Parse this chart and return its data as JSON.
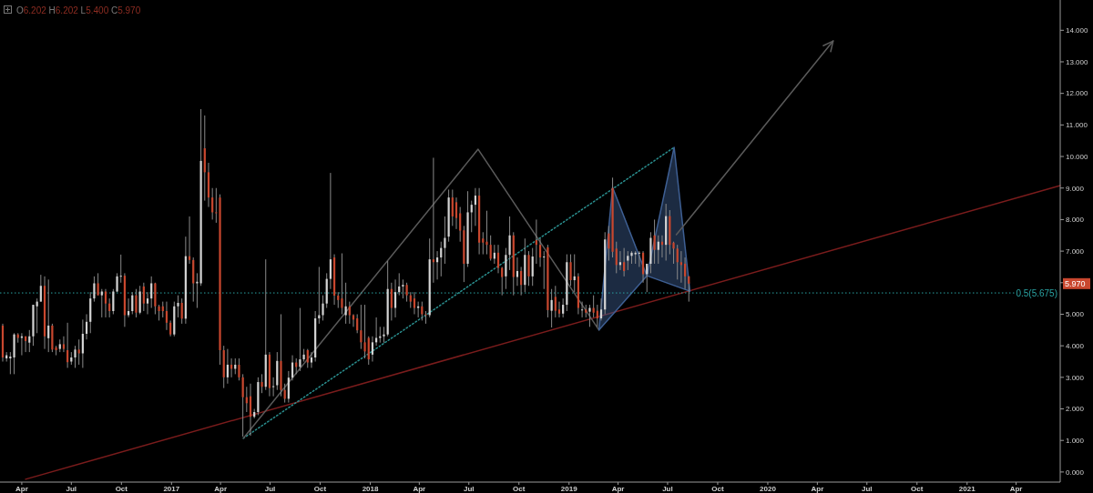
{
  "chart_data": {
    "type": "candlestick",
    "annotations": [
      "O6.202 H6.202 L5.400 C5.970",
      {
        "text": "5.970",
        "y": 5.97
      }
    ],
    "xlim": [
      "2016-02-21",
      "2021-06-21"
    ],
    "xticks": [
      {
        "value": "2016-04-01",
        "label": "Apr"
      },
      {
        "value": "2016-07-01",
        "label": "Jul"
      },
      {
        "value": "2016-10-01",
        "label": "Oct"
      },
      {
        "value": "2017-01-01",
        "label": "2017"
      },
      {
        "value": "2017-04-01",
        "label": "Apr"
      },
      {
        "value": "2017-07-01",
        "label": "Jul"
      },
      {
        "value": "2017-10-01",
        "label": "Oct"
      },
      {
        "value": "2018-01-01",
        "label": "2018"
      },
      {
        "value": "2018-04-01",
        "label": "Apr"
      },
      {
        "value": "2018-07-01",
        "label": "Jul"
      },
      {
        "value": "2018-10-01",
        "label": "Oct"
      },
      {
        "value": "2019-01-01",
        "label": "2019"
      },
      {
        "value": "2019-04-01",
        "label": "Apr"
      },
      {
        "value": "2019-07-01",
        "label": "Jul"
      },
      {
        "value": "2019-10-01",
        "label": "Oct"
      },
      {
        "value": "2020-01-01",
        "label": "2020"
      },
      {
        "value": "2020-04-01",
        "label": "Apr"
      },
      {
        "value": "2020-07-01",
        "label": "Jul"
      },
      {
        "value": "2020-10-01",
        "label": "Oct"
      },
      {
        "value": "2021-01-01",
        "label": "2021"
      },
      {
        "value": "2021-04-01",
        "label": "Apr"
      }
    ],
    "ylim": [
      -0.32,
      14.96
    ],
    "yticks": [
      {
        "value": 0,
        "label": "0.000"
      },
      {
        "value": 1,
        "label": "1.000"
      },
      {
        "value": 2,
        "label": "2.000"
      },
      {
        "value": 3,
        "label": "3.000"
      },
      {
        "value": 4,
        "label": "4.000"
      },
      {
        "value": 5,
        "label": "5.000"
      },
      {
        "value": 6,
        "label": null
      },
      {
        "value": 7,
        "label": "7.000"
      },
      {
        "value": 8,
        "label": "8.000"
      },
      {
        "value": 9,
        "label": "9.000"
      },
      {
        "value": 10,
        "label": "10.000"
      },
      {
        "value": 11,
        "label": "11.000"
      },
      {
        "value": 12,
        "label": "12.000"
      },
      {
        "value": 13,
        "label": "13.000"
      },
      {
        "value": 14,
        "label": "14.000"
      }
    ],
    "ref_lines": [
      {
        "axis": "y",
        "value": 5.675,
        "label": "0.5(5.675)",
        "color": "#2aa3a3",
        "line_style": "dotted"
      }
    ],
    "x": [
      "2016-02-26",
      "2016-03-04",
      "2016-03-11",
      "2016-03-18",
      "2016-03-25",
      "2016-04-01",
      "2016-04-08",
      "2016-04-15",
      "2016-04-22",
      "2016-04-29",
      "2016-05-06",
      "2016-05-13",
      "2016-05-20",
      "2016-05-27",
      "2016-06-03",
      "2016-06-10",
      "2016-06-17",
      "2016-06-24",
      "2016-07-01",
      "2016-07-08",
      "2016-07-15",
      "2016-07-22",
      "2016-07-29",
      "2016-08-05",
      "2016-08-12",
      "2016-08-19",
      "2016-08-26",
      "2016-09-02",
      "2016-09-09",
      "2016-09-16",
      "2016-09-23",
      "2016-09-30",
      "2016-10-07",
      "2016-10-14",
      "2016-10-21",
      "2016-10-28",
      "2016-11-04",
      "2016-11-11",
      "2016-11-18",
      "2016-11-25",
      "2016-12-02",
      "2016-12-09",
      "2016-12-16",
      "2016-12-23",
      "2016-12-30",
      "2017-01-06",
      "2017-01-13",
      "2017-01-20",
      "2017-01-27",
      "2017-02-03",
      "2017-02-10",
      "2017-02-17",
      "2017-02-24",
      "2017-03-03",
      "2017-03-10",
      "2017-03-17",
      "2017-03-24",
      "2017-03-31",
      "2017-04-07",
      "2017-04-14",
      "2017-04-21",
      "2017-04-28",
      "2017-05-05",
      "2017-05-12",
      "2017-05-19",
      "2017-05-26",
      "2017-06-02",
      "2017-06-09",
      "2017-06-16",
      "2017-06-23",
      "2017-06-30",
      "2017-07-07",
      "2017-07-14",
      "2017-07-21",
      "2017-07-28",
      "2017-08-04",
      "2017-08-11",
      "2017-08-18",
      "2017-08-25",
      "2017-09-01",
      "2017-09-08",
      "2017-09-15",
      "2017-09-22",
      "2017-09-29",
      "2017-10-06",
      "2017-10-13",
      "2017-10-20",
      "2017-10-27",
      "2017-11-03",
      "2017-11-10",
      "2017-11-17",
      "2017-11-24",
      "2017-12-01",
      "2017-12-08",
      "2017-12-15",
      "2017-12-22",
      "2017-12-29",
      "2018-01-05",
      "2018-01-12",
      "2018-01-19",
      "2018-01-26",
      "2018-02-02",
      "2018-02-09",
      "2018-02-16",
      "2018-02-23",
      "2018-03-02",
      "2018-03-09",
      "2018-03-16",
      "2018-03-23",
      "2018-03-30",
      "2018-04-06",
      "2018-04-13",
      "2018-04-20",
      "2018-04-27",
      "2018-05-04",
      "2018-05-11",
      "2018-05-18",
      "2018-05-25",
      "2018-06-01",
      "2018-06-08",
      "2018-06-15",
      "2018-06-22",
      "2018-06-29",
      "2018-07-06",
      "2018-07-13",
      "2018-07-20",
      "2018-07-27",
      "2018-08-03",
      "2018-08-10",
      "2018-08-17",
      "2018-08-24",
      "2018-08-31",
      "2018-09-07",
      "2018-09-14",
      "2018-09-21",
      "2018-09-28",
      "2018-10-05",
      "2018-10-12",
      "2018-10-19",
      "2018-10-26",
      "2018-11-02",
      "2018-11-09",
      "2018-11-16",
      "2018-11-23",
      "2018-11-30",
      "2018-12-07",
      "2018-12-14",
      "2018-12-21",
      "2018-12-28",
      "2019-01-04",
      "2019-01-11",
      "2019-01-18",
      "2019-01-25",
      "2019-02-01",
      "2019-02-08",
      "2019-02-15",
      "2019-02-22",
      "2019-03-01",
      "2019-03-08",
      "2019-03-15",
      "2019-03-22",
      "2019-03-29",
      "2019-04-05",
      "2019-04-12",
      "2019-04-19",
      "2019-04-26",
      "2019-05-03",
      "2019-05-10",
      "2019-05-17",
      "2019-05-24",
      "2019-05-31",
      "2019-06-07",
      "2019-06-14",
      "2019-06-21",
      "2019-06-28",
      "2019-07-05",
      "2019-07-12",
      "2019-07-19",
      "2019-07-26",
      "2019-08-02",
      "2019-08-09"
    ],
    "ohlc": [
      [
        4.64,
        4.7,
        3.5,
        3.63
      ],
      [
        3.6,
        3.8,
        3.5,
        3.7
      ],
      [
        3.6,
        3.8,
        3.1,
        3.66
      ],
      [
        3.63,
        4.4,
        3.1,
        4.36
      ],
      [
        4.36,
        4.4,
        4.1,
        4.25
      ],
      [
        4.25,
        4.4,
        3.7,
        4.3
      ],
      [
        4.3,
        4.3,
        3.8,
        4.15
      ],
      [
        4.1,
        4.5,
        3.8,
        4.3
      ],
      [
        4.3,
        5.3,
        4.0,
        5.3
      ],
      [
        5.25,
        5.5,
        4.4,
        5.4
      ],
      [
        5.4,
        6.25,
        5.4,
        5.9
      ],
      [
        5.9,
        6.2,
        3.9,
        4.3
      ],
      [
        4.24,
        6.1,
        3.8,
        4.64
      ],
      [
        4.64,
        4.7,
        3.8,
        3.88
      ],
      [
        3.95,
        4.0,
        3.7,
        3.86
      ],
      [
        3.9,
        4.2,
        3.8,
        4.05
      ],
      [
        4.05,
        4.3,
        3.8,
        3.9
      ],
      [
        3.86,
        4.73,
        3.3,
        3.48
      ],
      [
        3.5,
        3.8,
        3.4,
        3.63
      ],
      [
        3.63,
        4.0,
        3.3,
        3.88
      ],
      [
        3.88,
        4.2,
        3.4,
        3.76
      ],
      [
        3.76,
        4.83,
        3.3,
        4.38
      ],
      [
        4.38,
        5.0,
        4.2,
        4.76
      ],
      [
        4.76,
        5.7,
        4.4,
        5.5
      ],
      [
        5.5,
        6.2,
        5.4,
        5.98
      ],
      [
        5.98,
        6.3,
        5.6,
        5.6
      ],
      [
        5.6,
        5.8,
        4.9,
        5.72
      ],
      [
        5.72,
        5.8,
        4.9,
        5.34
      ],
      [
        5.34,
        5.5,
        4.9,
        5.1
      ],
      [
        5.1,
        5.8,
        5.0,
        5.72
      ],
      [
        5.72,
        6.3,
        5.7,
        6.2
      ],
      [
        6.2,
        6.89,
        6.0,
        6.22
      ],
      [
        6.22,
        6.3,
        4.6,
        4.97
      ],
      [
        4.97,
        5.5,
        4.9,
        5.1
      ],
      [
        5.1,
        5.7,
        5.0,
        5.6
      ],
      [
        5.6,
        5.8,
        4.9,
        5.05
      ],
      [
        5.05,
        5.9,
        5.0,
        5.72
      ],
      [
        5.88,
        6.0,
        5.1,
        5.34
      ],
      [
        5.34,
        5.7,
        5.0,
        5.5
      ],
      [
        5.5,
        6.2,
        5.2,
        5.98
      ],
      [
        5.98,
        6.0,
        5.0,
        5.25
      ],
      [
        5.25,
        5.3,
        4.8,
        5.1
      ],
      [
        5.25,
        5.4,
        4.9,
        5.1
      ],
      [
        5.1,
        5.4,
        4.5,
        4.73
      ],
      [
        4.73,
        4.8,
        4.3,
        4.36
      ],
      [
        4.36,
        5.4,
        4.3,
        5.25
      ],
      [
        5.25,
        5.6,
        4.9,
        5.36
      ],
      [
        5.36,
        5.5,
        4.7,
        4.86
      ],
      [
        4.86,
        7.46,
        4.7,
        6.84
      ],
      [
        6.84,
        8.1,
        6.6,
        6.72
      ],
      [
        6.72,
        6.8,
        5.4,
        5.98
      ],
      [
        5.98,
        6.3,
        5.2,
        6.03
      ],
      [
        5.98,
        11.5,
        5.9,
        9.86
      ],
      [
        10.26,
        11.3,
        8.6,
        9.5
      ],
      [
        9.5,
        9.8,
        8.4,
        8.7
      ],
      [
        8.7,
        9.0,
        8.0,
        8.23
      ],
      [
        8.23,
        9.0,
        7.9,
        8.2
      ],
      [
        8.7,
        8.8,
        3.4,
        3.86
      ],
      [
        3.86,
        4.0,
        2.66,
        3.0
      ],
      [
        3.0,
        3.9,
        2.8,
        3.4
      ],
      [
        3.4,
        3.6,
        3.0,
        3.27
      ],
      [
        3.27,
        3.6,
        3.1,
        3.4
      ],
      [
        3.4,
        3.6,
        2.9,
        3.0
      ],
      [
        3.0,
        3.1,
        1.12,
        2.37
      ],
      [
        2.37,
        2.7,
        1.9,
        2.18
      ],
      [
        2.4,
        2.8,
        1.15,
        1.75
      ],
      [
        1.75,
        2.0,
        1.7,
        1.9
      ],
      [
        1.9,
        3.0,
        1.8,
        2.85
      ],
      [
        2.85,
        3.1,
        2.5,
        2.7
      ],
      [
        2.7,
        6.74,
        2.6,
        3.72
      ],
      [
        3.72,
        3.8,
        2.4,
        2.66
      ],
      [
        2.7,
        3.0,
        2.4,
        2.72
      ],
      [
        2.75,
        3.8,
        2.6,
        3.52
      ],
      [
        3.52,
        5.0,
        2.4,
        2.6
      ],
      [
        2.6,
        2.8,
        2.2,
        2.32
      ],
      [
        2.32,
        3.2,
        2.2,
        2.99
      ],
      [
        2.99,
        3.7,
        2.9,
        3.47
      ],
      [
        3.47,
        3.6,
        3.1,
        3.33
      ],
      [
        3.33,
        5.2,
        3.2,
        3.57
      ],
      [
        3.57,
        3.9,
        3.5,
        3.72
      ],
      [
        3.86,
        3.9,
        3.3,
        3.47
      ],
      [
        3.47,
        3.8,
        3.3,
        3.63
      ],
      [
        3.63,
        5.1,
        3.5,
        4.87
      ],
      [
        4.87,
        6.5,
        4.7,
        4.97
      ],
      [
        4.97,
        5.6,
        4.8,
        5.34
      ],
      [
        5.34,
        6.3,
        5.2,
        6.12
      ],
      [
        6.12,
        9.48,
        5.8,
        6.74
      ],
      [
        6.8,
        6.9,
        5.3,
        5.59
      ],
      [
        5.59,
        5.7,
        5.2,
        5.45
      ],
      [
        5.5,
        6.93,
        5.0,
        5.2
      ],
      [
        4.97,
        6.0,
        4.7,
        5.25
      ],
      [
        5.25,
        5.4,
        4.7,
        4.97
      ],
      [
        4.97,
        5.0,
        4.6,
        4.83
      ],
      [
        4.87,
        5.0,
        4.4,
        4.49
      ],
      [
        4.49,
        5.3,
        3.9,
        4.11
      ],
      [
        4.11,
        5.3,
        3.6,
        3.82
      ],
      [
        4.25,
        4.3,
        3.4,
        3.57
      ],
      [
        3.72,
        4.3,
        3.5,
        4.11
      ],
      [
        4.11,
        4.9,
        4.0,
        4.25
      ],
      [
        4.25,
        4.6,
        4.1,
        4.3
      ],
      [
        4.3,
        4.6,
        4.1,
        4.36
      ],
      [
        4.36,
        6.69,
        4.3,
        5.8
      ],
      [
        5.8,
        6.0,
        4.8,
        5.2
      ],
      [
        5.2,
        6.1,
        4.9,
        5.7
      ],
      [
        5.7,
        6.3,
        5.6,
        5.88
      ],
      [
        5.88,
        6.1,
        5.5,
        5.93
      ],
      [
        5.93,
        6.0,
        5.4,
        5.6
      ],
      [
        5.6,
        5.7,
        5.2,
        5.4
      ],
      [
        5.5,
        5.7,
        5.0,
        5.2
      ],
      [
        5.2,
        5.4,
        4.9,
        5.25
      ],
      [
        5.25,
        5.4,
        4.8,
        5.0
      ],
      [
        5.0,
        5.1,
        4.7,
        4.97
      ],
      [
        4.97,
        7.4,
        4.9,
        6.74
      ],
      [
        6.74,
        9.96,
        6.0,
        6.65
      ],
      [
        6.65,
        7.0,
        6.1,
        6.8
      ],
      [
        6.8,
        7.3,
        6.2,
        7.1
      ],
      [
        7.1,
        8.1,
        6.6,
        7.42
      ],
      [
        7.46,
        8.95,
        7.3,
        8.7
      ],
      [
        8.7,
        8.95,
        7.8,
        8.1
      ],
      [
        8.55,
        8.7,
        7.7,
        8.05
      ],
      [
        8.2,
        8.4,
        7.3,
        7.65
      ],
      [
        7.66,
        7.8,
        6.02,
        6.6
      ],
      [
        6.6,
        8.9,
        6.5,
        8.23
      ],
      [
        8.23,
        8.6,
        7.6,
        8.47
      ],
      [
        8.47,
        9.0,
        7.8,
        8.76
      ],
      [
        8.76,
        9.0,
        6.9,
        7.27
      ],
      [
        7.4,
        7.6,
        6.9,
        7.27
      ],
      [
        7.3,
        8.28,
        6.9,
        7.2
      ],
      [
        7.2,
        7.5,
        6.7,
        6.76
      ],
      [
        6.76,
        7.2,
        6.6,
        6.95
      ],
      [
        6.95,
        7.2,
        6.3,
        6.47
      ],
      [
        6.47,
        6.5,
        5.6,
        6.18
      ],
      [
        6.2,
        7.1,
        5.8,
        6.88
      ],
      [
        6.88,
        8.1,
        6.4,
        7.5
      ],
      [
        7.5,
        7.6,
        5.6,
        6.18
      ],
      [
        6.18,
        6.8,
        5.9,
        6.37
      ],
      [
        6.37,
        6.5,
        5.6,
        5.93
      ],
      [
        5.93,
        7.4,
        5.7,
        6.88
      ],
      [
        6.88,
        7.0,
        5.9,
        6.2
      ],
      [
        6.2,
        7.1,
        5.9,
        6.83
      ],
      [
        7.35,
        8.0,
        6.6,
        7.2
      ],
      [
        7.2,
        7.4,
        6.5,
        6.8
      ],
      [
        6.8,
        7.0,
        5.8,
        6.83
      ],
      [
        7.12,
        7.2,
        4.9,
        5.13
      ],
      [
        5.11,
        5.8,
        4.58,
        5.45
      ],
      [
        5.55,
        5.9,
        4.9,
        5.11
      ],
      [
        5.15,
        5.4,
        4.9,
        5.02
      ],
      [
        5.02,
        5.5,
        4.9,
        5.3
      ],
      [
        5.3,
        6.9,
        5.1,
        6.65
      ],
      [
        6.65,
        6.9,
        5.9,
        6.08
      ],
      [
        6.08,
        6.9,
        5.7,
        6.2
      ],
      [
        6.2,
        6.3,
        5.0,
        5.2
      ],
      [
        5.15,
        5.4,
        4.9,
        5.15
      ],
      [
        5.15,
        5.3,
        4.9,
        5.05
      ],
      [
        5.08,
        5.3,
        4.6,
        5.2
      ],
      [
        5.2,
        5.6,
        4.9,
        5.05
      ],
      [
        5.11,
        5.3,
        4.6,
        4.87
      ],
      [
        4.87,
        5.5,
        4.8,
        5.15
      ],
      [
        5.15,
        7.6,
        5.0,
        7.37
      ],
      [
        7.56,
        7.8,
        6.7,
        7.08
      ],
      [
        9.0,
        9.33,
        6.8,
        6.98
      ],
      [
        7.08,
        7.3,
        6.3,
        6.56
      ],
      [
        6.56,
        7.0,
        6.4,
        6.65
      ],
      [
        6.65,
        7.1,
        6.2,
        6.37
      ],
      [
        6.7,
        7.0,
        6.4,
        6.85
      ],
      [
        6.85,
        7.0,
        6.6,
        6.95
      ],
      [
        6.9,
        7.0,
        6.6,
        6.95
      ],
      [
        6.95,
        7.0,
        6.5,
        6.95
      ],
      [
        6.95,
        7.0,
        6.0,
        6.27
      ],
      [
        6.27,
        6.6,
        5.7,
        6.6
      ],
      [
        6.6,
        7.6,
        6.3,
        7.42
      ],
      [
        7.5,
        8.0,
        6.6,
        7.04
      ],
      [
        7.04,
        7.5,
        6.6,
        7.3
      ],
      [
        7.3,
        7.5,
        6.8,
        7.2
      ],
      [
        7.2,
        8.5,
        6.7,
        8.11
      ],
      [
        8.11,
        8.3,
        6.9,
        7.2
      ],
      [
        7.27,
        7.3,
        6.6,
        7.08
      ],
      [
        7.08,
        7.2,
        6.1,
        6.65
      ],
      [
        6.65,
        7.0,
        6.0,
        6.56
      ],
      [
        6.6,
        6.8,
        5.8,
        6.2
      ],
      [
        6.202,
        6.202,
        5.4,
        5.97
      ]
    ],
    "series": [
      {
        "type": "line",
        "color": "#7a1c1c",
        "line_style": "solid",
        "x": [
          "2016-04-08",
          "2021-06-21"
        ],
        "values": [
          -0.23,
          9.08
        ]
      },
      {
        "type": "line",
        "color": "#2a8f8f",
        "line_style": "dotted",
        "x": [
          "2017-05-13",
          "2019-07-13"
        ],
        "values": [
          1.07,
          10.29
        ]
      },
      {
        "type": "line",
        "color": "#5a5a5a",
        "line_style": "solid",
        "x": [
          "2017-05-13",
          "2018-07-18",
          "2019-02-25"
        ],
        "values": [
          1.07,
          10.23,
          4.5
        ]
      },
      {
        "type": "area",
        "color": "#3e5f93",
        "line_style": "solid",
        "x": [
          "2019-02-25",
          "2019-03-22",
          "2019-05-24",
          "2019-02-25"
        ],
        "values": [
          4.5,
          9.02,
          6.22,
          4.5
        ]
      },
      {
        "type": "area",
        "color": "#3e5f93",
        "line_style": "solid",
        "x": [
          "2019-05-24",
          "2019-07-13",
          "2019-08-11",
          "2019-05-24"
        ],
        "values": [
          6.22,
          10.29,
          5.73,
          6.22
        ]
      },
      {
        "type": "line",
        "color": "#5a5a5a",
        "line_style": "solid",
        "x": [
          "2019-07-17",
          "2020-04-30"
        ],
        "values": [
          7.52,
          13.66
        ]
      }
    ]
  }
}
